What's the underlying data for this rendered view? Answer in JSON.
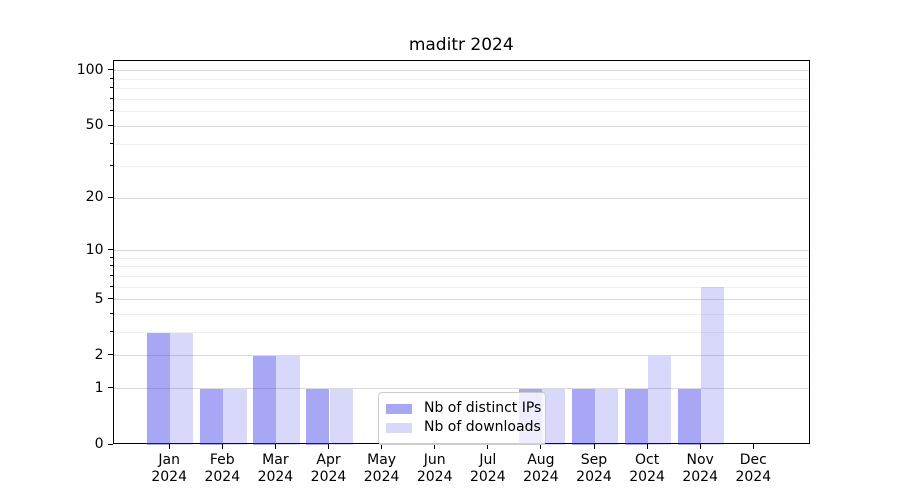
{
  "chart_data": {
    "type": "bar",
    "title": "maditr 2024",
    "x": [
      "Jan",
      "Feb",
      "Mar",
      "Apr",
      "May",
      "Jun",
      "Jul",
      "Aug",
      "Sep",
      "Oct",
      "Nov",
      "Dec"
    ],
    "x_year": "2024",
    "series": [
      {
        "name": "Nb of distinct IPs",
        "color": "rgba(60,60,232,0.45)",
        "values": [
          3,
          1,
          2,
          1,
          0,
          0,
          0,
          1,
          1,
          1,
          1,
          0
        ]
      },
      {
        "name": "Nb of downloads",
        "color": "rgba(60,60,232,0.20)",
        "values": [
          3,
          1,
          2,
          1,
          0,
          0,
          0,
          1,
          1,
          2,
          6,
          0
        ]
      }
    ],
    "yscale": "log1p",
    "ylim": [
      0,
      114
    ],
    "y_major_ticks": [
      0,
      1,
      2,
      5,
      10,
      20,
      50,
      100
    ],
    "y_minor_ticks": [
      3,
      4,
      6,
      7,
      8,
      9,
      30,
      40,
      60,
      70,
      80,
      90
    ],
    "grid": true,
    "legend_position": "lower-center"
  },
  "colors": {
    "major_grid": "#d9d9d9",
    "minor_grid": "#efefef",
    "spine": "#000000",
    "background": "#ffffff"
  }
}
